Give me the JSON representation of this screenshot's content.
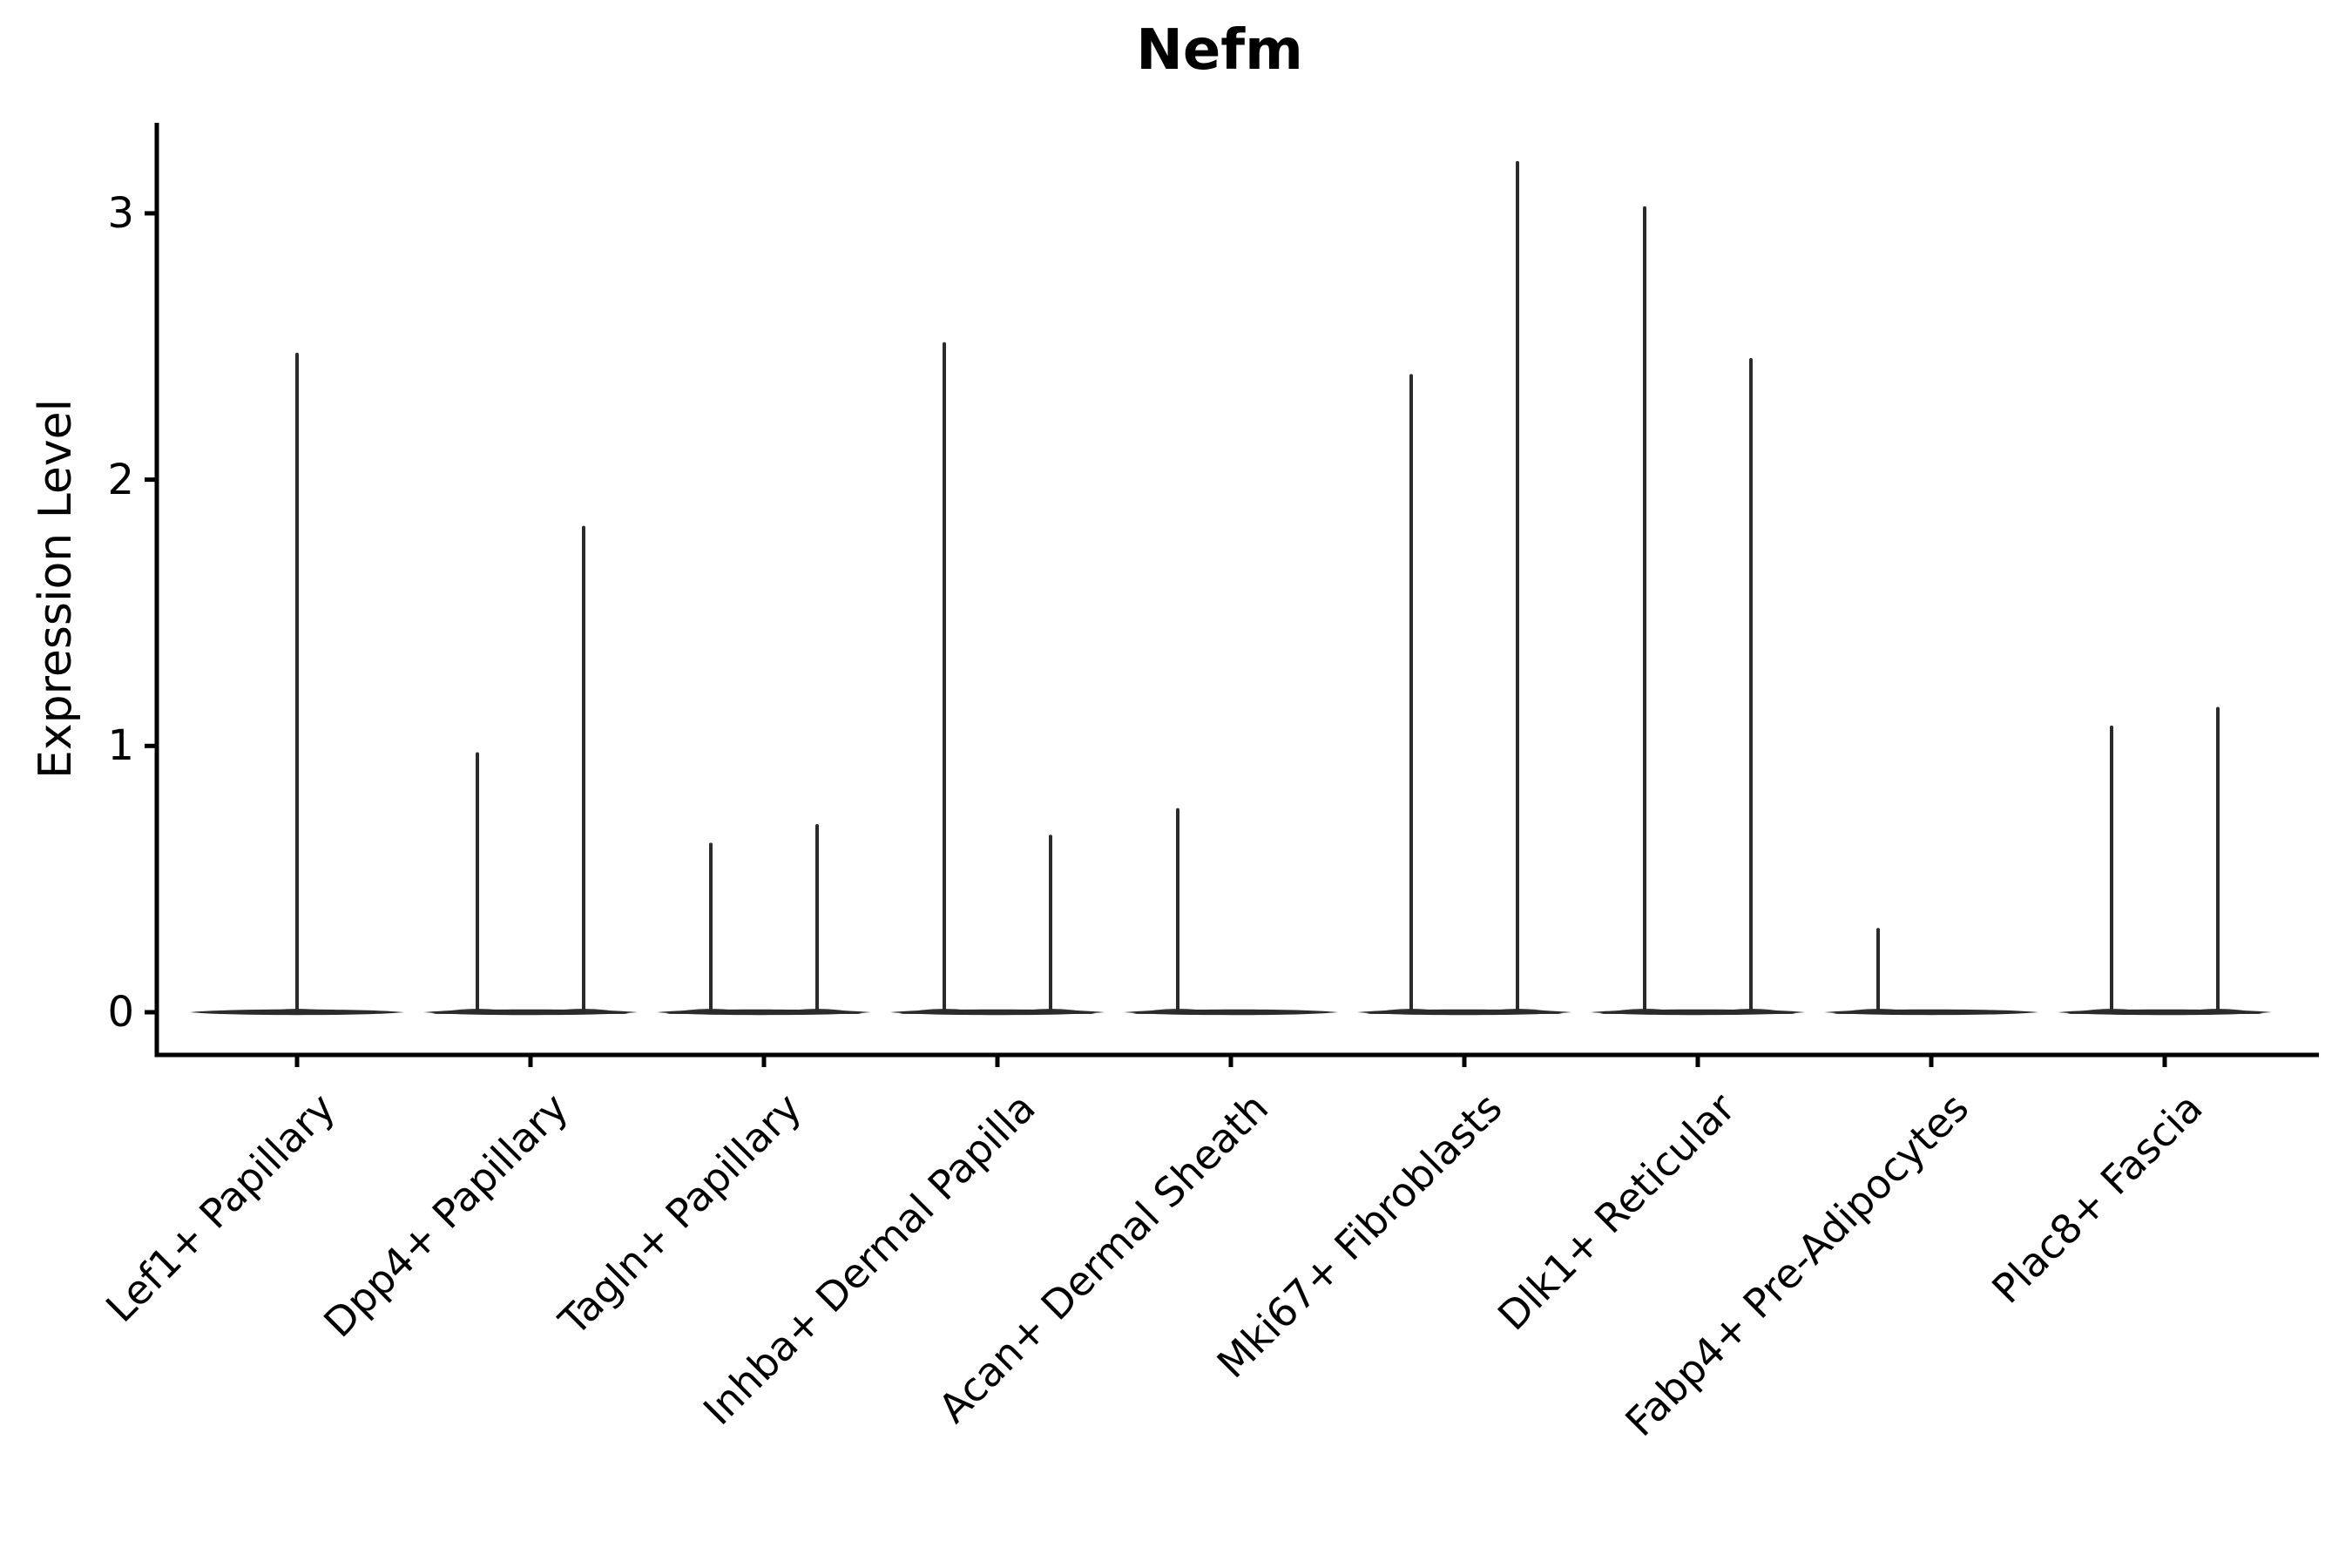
{
  "chart_data": {
    "type": "violin",
    "title": "Nefm",
    "ylabel": "Expression Level",
    "xlabel": "",
    "yticks": [
      0,
      1,
      2,
      3
    ],
    "ylim": [
      -0.16,
      3.35
    ],
    "grid": false,
    "legend": "none",
    "categories": [
      "Lef1+ Papillary",
      "Dpp4+ Papillary",
      "Tagln+ Papillary",
      "Inhba+ Dermal Papilla",
      "Acan+ Dermal Sheath",
      "Mki67+ Fibroblasts",
      "Dlk1+ Reticular",
      "Fabp4+ Pre-Adipocytes",
      "Plac8+ Fascia"
    ],
    "series": [
      {
        "category": "Lef1+ Papillary",
        "violins": [
          {
            "side": "center",
            "max_expression": 2.47
          }
        ]
      },
      {
        "category": "Dpp4+ Papillary",
        "violins": [
          {
            "side": "left",
            "max_expression": 0.97
          },
          {
            "side": "right",
            "max_expression": 1.82
          }
        ]
      },
      {
        "category": "Tagln+ Papillary",
        "violins": [
          {
            "side": "left",
            "max_expression": 0.63
          },
          {
            "side": "right",
            "max_expression": 0.7
          }
        ]
      },
      {
        "category": "Inhba+ Dermal Papilla",
        "violins": [
          {
            "side": "left",
            "max_expression": 2.51
          },
          {
            "side": "right",
            "max_expression": 0.66
          }
        ]
      },
      {
        "category": "Acan+ Dermal Sheath",
        "violins": [
          {
            "side": "left",
            "max_expression": 0.76
          }
        ]
      },
      {
        "category": "Mki67+ Fibroblasts",
        "violins": [
          {
            "side": "left",
            "max_expression": 2.39
          },
          {
            "side": "right",
            "max_expression": 3.19
          }
        ]
      },
      {
        "category": "Dlk1+ Reticular",
        "violins": [
          {
            "side": "left",
            "max_expression": 3.02
          },
          {
            "side": "right",
            "max_expression": 2.45
          }
        ]
      },
      {
        "category": "Fabp4+ Pre-Adipocytes",
        "violins": [
          {
            "side": "left",
            "max_expression": 0.31
          }
        ]
      },
      {
        "category": "Plac8+ Fascia",
        "violins": [
          {
            "side": "left",
            "max_expression": 1.07
          },
          {
            "side": "right",
            "max_expression": 1.14
          }
        ]
      }
    ],
    "colors": {
      "violin_stroke": "#2b2b2b",
      "axis": "#000000",
      "text": "#000000",
      "background": "#ffffff"
    }
  }
}
